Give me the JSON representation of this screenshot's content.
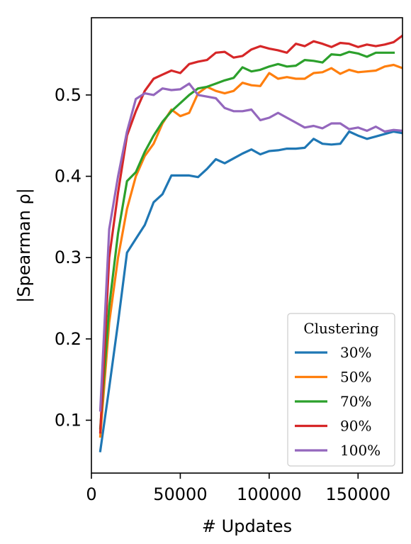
{
  "chart_data": {
    "type": "line",
    "xlabel": "# Updates",
    "ylabel": "|Spearman ρ|",
    "xlim": [
      0,
      175000
    ],
    "ylim": [
      0.035,
      0.595
    ],
    "xticks": [
      0,
      50000,
      100000,
      150000
    ],
    "xtick_labels": [
      "0",
      "50000",
      "100000",
      "150000"
    ],
    "yticks": [
      0.1,
      0.2,
      0.3,
      0.4,
      0.5
    ],
    "ytick_labels": [
      "0.1",
      "0.2",
      "0.3",
      "0.4",
      "0.5"
    ],
    "grid": false,
    "legend": {
      "title": "Clustering",
      "position": "lower-right"
    },
    "series": [
      {
        "name": "30%",
        "color": "#1f77b4",
        "x": [
          5000,
          10000,
          15000,
          20000,
          25000,
          30000,
          35000,
          40000,
          45000,
          50000,
          55000,
          60000,
          65000,
          70000,
          75000,
          80000,
          85000,
          90000,
          95000,
          100000,
          105000,
          110000,
          115000,
          120000,
          125000,
          130000,
          135000,
          140000,
          145000,
          150000,
          155000,
          160000,
          165000,
          170000,
          175000
        ],
        "y": [
          0.062,
          0.14,
          0.22,
          0.306,
          0.323,
          0.34,
          0.368,
          0.378,
          0.401,
          0.401,
          0.401,
          0.399,
          0.409,
          0.421,
          0.416,
          0.422,
          0.428,
          0.433,
          0.427,
          0.431,
          0.432,
          0.434,
          0.434,
          0.435,
          0.446,
          0.44,
          0.439,
          0.44,
          0.455,
          0.45,
          0.446,
          0.449,
          0.452,
          0.455,
          0.453
        ]
      },
      {
        "name": "50%",
        "color": "#ff7f0e",
        "x": [
          5000,
          10000,
          15000,
          20000,
          25000,
          30000,
          35000,
          40000,
          45000,
          50000,
          55000,
          60000,
          65000,
          70000,
          75000,
          80000,
          85000,
          90000,
          95000,
          100000,
          105000,
          110000,
          115000,
          120000,
          125000,
          130000,
          135000,
          140000,
          145000,
          150000,
          155000,
          160000,
          165000,
          170000,
          175000
        ],
        "y": [
          0.08,
          0.22,
          0.3,
          0.36,
          0.4,
          0.425,
          0.44,
          0.465,
          0.482,
          0.474,
          0.478,
          0.502,
          0.51,
          0.505,
          0.502,
          0.505,
          0.515,
          0.512,
          0.511,
          0.527,
          0.52,
          0.522,
          0.52,
          0.52,
          0.527,
          0.528,
          0.533,
          0.526,
          0.531,
          0.528,
          0.529,
          0.53,
          0.535,
          0.537,
          0.533
        ]
      },
      {
        "name": "70%",
        "color": "#2ca02c",
        "x": [
          5000,
          10000,
          15000,
          20000,
          25000,
          30000,
          35000,
          40000,
          45000,
          50000,
          55000,
          60000,
          65000,
          70000,
          75000,
          80000,
          85000,
          90000,
          95000,
          100000,
          105000,
          110000,
          115000,
          120000,
          125000,
          130000,
          135000,
          140000,
          145000,
          150000,
          155000,
          160000,
          165000,
          170000
        ],
        "y": [
          0.09,
          0.24,
          0.33,
          0.394,
          0.405,
          0.43,
          0.45,
          0.467,
          0.48,
          0.49,
          0.5,
          0.508,
          0.51,
          0.514,
          0.518,
          0.521,
          0.534,
          0.529,
          0.531,
          0.535,
          0.538,
          0.535,
          0.536,
          0.543,
          0.542,
          0.54,
          0.55,
          0.549,
          0.553,
          0.551,
          0.547,
          0.552,
          0.552,
          0.552
        ]
      },
      {
        "name": "90%",
        "color": "#d62728",
        "x": [
          5000,
          10000,
          15000,
          20000,
          25000,
          30000,
          35000,
          40000,
          45000,
          50000,
          55000,
          60000,
          65000,
          70000,
          75000,
          80000,
          85000,
          90000,
          95000,
          100000,
          105000,
          110000,
          115000,
          120000,
          125000,
          130000,
          135000,
          140000,
          145000,
          150000,
          155000,
          160000,
          165000,
          170000,
          175000
        ],
        "y": [
          0.085,
          0.3,
          0.38,
          0.45,
          0.48,
          0.505,
          0.52,
          0.525,
          0.53,
          0.527,
          0.538,
          0.541,
          0.543,
          0.552,
          0.553,
          0.546,
          0.548,
          0.556,
          0.56,
          0.557,
          0.555,
          0.552,
          0.563,
          0.56,
          0.566,
          0.563,
          0.559,
          0.564,
          0.563,
          0.559,
          0.562,
          0.56,
          0.562,
          0.565,
          0.573
        ]
      },
      {
        "name": "100%",
        "color": "#9467bd",
        "x": [
          5000,
          10000,
          15000,
          20000,
          25000,
          30000,
          35000,
          40000,
          45000,
          50000,
          55000,
          60000,
          65000,
          70000,
          75000,
          80000,
          85000,
          90000,
          95000,
          100000,
          105000,
          110000,
          115000,
          120000,
          125000,
          130000,
          135000,
          140000,
          145000,
          150000,
          155000,
          160000,
          165000,
          170000,
          175000
        ],
        "y": [
          0.112,
          0.335,
          0.4,
          0.455,
          0.495,
          0.502,
          0.5,
          0.508,
          0.506,
          0.507,
          0.514,
          0.5,
          0.498,
          0.496,
          0.484,
          0.48,
          0.48,
          0.482,
          0.469,
          0.472,
          0.478,
          0.472,
          0.466,
          0.46,
          0.462,
          0.459,
          0.465,
          0.465,
          0.458,
          0.46,
          0.456,
          0.461,
          0.455,
          0.457,
          0.456
        ]
      }
    ]
  }
}
